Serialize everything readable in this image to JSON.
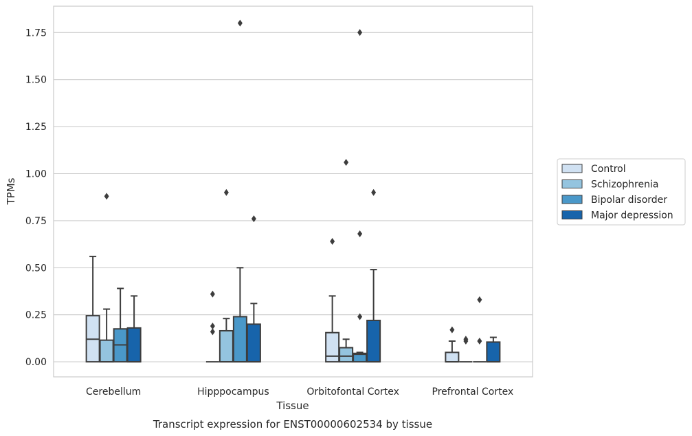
{
  "chart_data": {
    "type": "box",
    "ylabel": "TPMs",
    "xlabel": "Tissue",
    "caption": "Transcript expression for ENST00000602534 by tissue",
    "ylim": [
      -0.08,
      1.89
    ],
    "yticks": [
      "0.00",
      "0.25",
      "0.50",
      "0.75",
      "1.00",
      "1.25",
      "1.50",
      "1.75"
    ],
    "grid": "horizontal",
    "legend_placement": "right",
    "categories": [
      "Cerebellum",
      "Hipppocampus",
      "Orbitofontal Cortex",
      "Prefrontal Cortex"
    ],
    "series": [
      {
        "name": "Control",
        "color": "#d0e1f2",
        "boxes": [
          {
            "whislo": 0.0,
            "q1": 0.0,
            "med": 0.12,
            "q3": 0.245,
            "whishi": 0.56,
            "fliers": []
          },
          {
            "whislo": 0.0,
            "q1": 0.0,
            "med": 0.0,
            "q3": 0.0,
            "whishi": 0.0,
            "fliers": [
              0.16,
              0.19,
              0.36
            ]
          },
          {
            "whislo": 0.0,
            "q1": 0.0,
            "med": 0.03,
            "q3": 0.155,
            "whishi": 0.35,
            "fliers": [
              0.64
            ]
          },
          {
            "whislo": 0.0,
            "q1": 0.0,
            "med": 0.0,
            "q3": 0.05,
            "whishi": 0.11,
            "fliers": [
              0.17
            ]
          }
        ]
      },
      {
        "name": "Schizophrenia",
        "color": "#94c4df",
        "boxes": [
          {
            "whislo": 0.0,
            "q1": 0.0,
            "med": 0.0,
            "q3": 0.115,
            "whishi": 0.28,
            "fliers": [
              0.88
            ]
          },
          {
            "whislo": 0.0,
            "q1": 0.0,
            "med": 0.0,
            "q3": 0.165,
            "whishi": 0.23,
            "fliers": [
              0.9
            ]
          },
          {
            "whislo": 0.0,
            "q1": 0.0,
            "med": 0.03,
            "q3": 0.075,
            "whishi": 0.12,
            "fliers": [
              1.06
            ]
          },
          {
            "whislo": 0.0,
            "q1": 0.0,
            "med": 0.0,
            "q3": 0.0,
            "whishi": 0.0,
            "fliers": [
              0.11,
              0.12
            ]
          }
        ]
      },
      {
        "name": "Bipolar disorder",
        "color": "#4a98c9",
        "boxes": [
          {
            "whislo": 0.0,
            "q1": 0.0,
            "med": 0.09,
            "q3": 0.175,
            "whishi": 0.39,
            "fliers": []
          },
          {
            "whislo": 0.0,
            "q1": 0.0,
            "med": 0.0,
            "q3": 0.24,
            "whishi": 0.5,
            "fliers": [
              1.8
            ]
          },
          {
            "whislo": 0.0,
            "q1": 0.0,
            "med": 0.04,
            "q3": 0.045,
            "whishi": 0.05,
            "fliers": [
              0.24,
              0.68,
              1.75
            ]
          },
          {
            "whislo": 0.0,
            "q1": 0.0,
            "med": 0.0,
            "q3": 0.0,
            "whishi": 0.0,
            "fliers": [
              0.11,
              0.33
            ]
          }
        ]
      },
      {
        "name": "Major depression",
        "color": "#1764ab",
        "boxes": [
          {
            "whislo": 0.0,
            "q1": 0.0,
            "med": 0.0,
            "q3": 0.18,
            "whishi": 0.35,
            "fliers": []
          },
          {
            "whislo": 0.0,
            "q1": 0.0,
            "med": 0.0,
            "q3": 0.2,
            "whishi": 0.31,
            "fliers": [
              0.76
            ]
          },
          {
            "whislo": 0.0,
            "q1": 0.0,
            "med": 0.0,
            "q3": 0.22,
            "whishi": 0.49,
            "fliers": [
              0.9
            ]
          },
          {
            "whislo": 0.0,
            "q1": 0.0,
            "med": 0.0,
            "q3": 0.105,
            "whishi": 0.13,
            "fliers": []
          }
        ]
      }
    ]
  }
}
